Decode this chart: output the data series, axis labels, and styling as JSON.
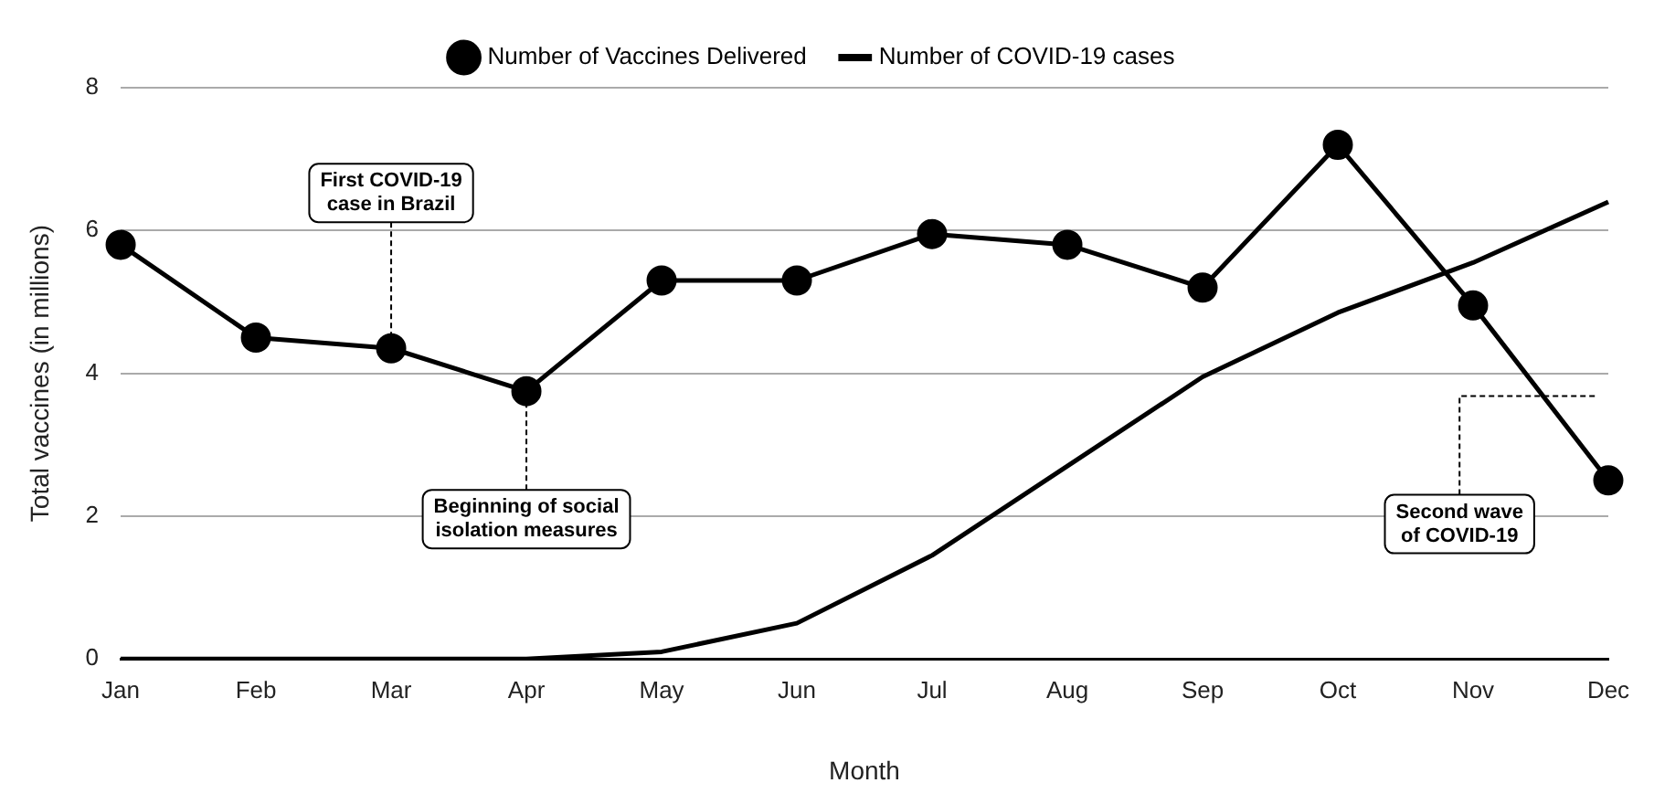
{
  "chart_data": {
    "type": "line",
    "xlabel": "Month",
    "ylabel": "Total vaccines (in millions)",
    "categories": [
      "Jan",
      "Feb",
      "Mar",
      "Apr",
      "May",
      "Jun",
      "Jul",
      "Aug",
      "Sep",
      "Oct",
      "Nov",
      "Dec"
    ],
    "series": [
      {
        "name": "Number of Vaccines Delivered",
        "color": "#000000",
        "marker": "circle",
        "values": [
          5.8,
          4.5,
          4.35,
          3.75,
          5.3,
          5.3,
          5.95,
          5.8,
          5.2,
          7.2,
          4.95,
          2.5
        ]
      },
      {
        "name": "Number of COVID-19 cases",
        "color": "#000000",
        "marker": "none",
        "values": [
          0,
          0,
          0,
          0,
          0.1,
          0.5,
          1.45,
          2.7,
          3.95,
          4.85,
          5.55,
          6.4
        ]
      }
    ],
    "ylim": [
      0,
      8
    ],
    "yticks": [
      0,
      2,
      4,
      6,
      8
    ],
    "grid": "y",
    "legend": "top",
    "line_style": "solid",
    "annotations": [
      {
        "text": "First COVID-19 case in Brazil",
        "x": "Mar",
        "y": 4.35
      },
      {
        "text": "Beginning of social isolation measures",
        "x": "Apr",
        "y": 3.75
      },
      "Second wave of COVID-19"
    ]
  }
}
